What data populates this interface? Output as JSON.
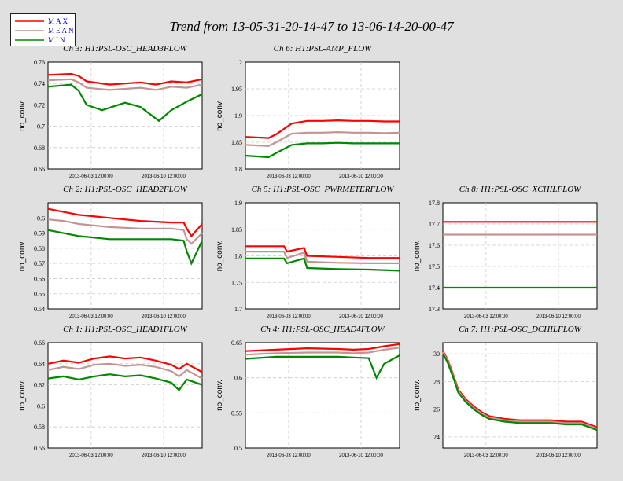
{
  "title": "Trend from 13-05-31-20-14-47 to 13-06-14-20-00-47",
  "legend": [
    {
      "label": "MAX",
      "color": "#ff0000"
    },
    {
      "label": "MEAN",
      "color": "#c49494"
    },
    {
      "label": "MIN",
      "color": "#008800"
    }
  ],
  "chart_data": [
    {
      "type": "line",
      "title": "Ch 3: H1:PSL-OSC_HEAD3FLOW",
      "ylabel": "no_conv.",
      "ylim": [
        0.66,
        0.76
      ],
      "yticks": [
        0.66,
        0.68,
        0.7,
        0.72,
        0.74,
        0.76
      ],
      "xticks": [
        "2013-06-03 12:00:00",
        "2013-06-10 12:00:00"
      ],
      "series": [
        {
          "name": "MAX",
          "x": [
            0,
            0.15,
            0.2,
            0.25,
            0.4,
            0.5,
            0.6,
            0.7,
            0.8,
            0.9,
            1
          ],
          "values": [
            0.748,
            0.749,
            0.747,
            0.742,
            0.739,
            0.74,
            0.741,
            0.739,
            0.742,
            0.741,
            0.744
          ]
        },
        {
          "name": "MEAN",
          "x": [
            0,
            0.15,
            0.2,
            0.25,
            0.4,
            0.5,
            0.6,
            0.7,
            0.8,
            0.9,
            1
          ],
          "values": [
            0.743,
            0.744,
            0.741,
            0.736,
            0.734,
            0.735,
            0.736,
            0.734,
            0.737,
            0.736,
            0.739
          ]
        },
        {
          "name": "MIN",
          "x": [
            0,
            0.15,
            0.2,
            0.25,
            0.35,
            0.5,
            0.6,
            0.72,
            0.8,
            0.9,
            1
          ],
          "values": [
            0.737,
            0.739,
            0.733,
            0.72,
            0.715,
            0.722,
            0.718,
            0.705,
            0.715,
            0.723,
            0.73
          ]
        }
      ]
    },
    {
      "type": "line",
      "title": "Ch 6: H1:PSL-AMP_FLOW",
      "ylabel": "no_conv.",
      "ylim": [
        1.8,
        2.0
      ],
      "yticks": [
        1.8,
        1.85,
        1.9,
        1.95,
        2
      ],
      "xticks": [
        "2013-06-03 12:00:00",
        "2013-06-10 12:00:00"
      ],
      "series": [
        {
          "name": "MAX",
          "x": [
            0,
            0.15,
            0.2,
            0.3,
            0.4,
            0.5,
            0.6,
            0.7,
            0.8,
            0.9,
            1
          ],
          "values": [
            1.86,
            1.858,
            1.865,
            1.885,
            1.89,
            1.89,
            1.891,
            1.89,
            1.89,
            1.889,
            1.889
          ]
        },
        {
          "name": "MEAN",
          "x": [
            0,
            0.15,
            0.2,
            0.3,
            0.4,
            0.5,
            0.6,
            0.7,
            0.8,
            0.9,
            1
          ],
          "values": [
            1.845,
            1.843,
            1.85,
            1.866,
            1.868,
            1.868,
            1.869,
            1.868,
            1.868,
            1.867,
            1.868
          ]
        },
        {
          "name": "MIN",
          "x": [
            0,
            0.15,
            0.2,
            0.3,
            0.4,
            0.5,
            0.6,
            0.7,
            0.8,
            0.9,
            1
          ],
          "values": [
            1.825,
            1.822,
            1.83,
            1.845,
            1.848,
            1.848,
            1.849,
            1.848,
            1.848,
            1.848,
            1.848
          ]
        }
      ]
    },
    {
      "type": "line",
      "title": "Ch 2: H1:PSL-OSC_HEAD2FLOW",
      "ylabel": "no_conv.",
      "ylim": [
        0.54,
        0.61
      ],
      "yticks": [
        0.54,
        0.55,
        0.56,
        0.57,
        0.58,
        0.59,
        0.6
      ],
      "xticks": [
        "2013-06-03 12:00:00",
        "2013-06-10 12:00:00"
      ],
      "series": [
        {
          "name": "MAX",
          "x": [
            0,
            0.1,
            0.2,
            0.4,
            0.6,
            0.8,
            0.88,
            0.9,
            0.93,
            1
          ],
          "values": [
            0.606,
            0.604,
            0.602,
            0.6,
            0.598,
            0.597,
            0.597,
            0.593,
            0.588,
            0.596
          ]
        },
        {
          "name": "MEAN",
          "x": [
            0,
            0.1,
            0.2,
            0.4,
            0.6,
            0.8,
            0.88,
            0.9,
            0.93,
            1
          ],
          "values": [
            0.599,
            0.598,
            0.596,
            0.594,
            0.593,
            0.593,
            0.592,
            0.586,
            0.583,
            0.59
          ]
        },
        {
          "name": "MIN",
          "x": [
            0,
            0.1,
            0.2,
            0.4,
            0.6,
            0.8,
            0.88,
            0.9,
            0.93,
            1
          ],
          "values": [
            0.592,
            0.59,
            0.588,
            0.586,
            0.586,
            0.586,
            0.585,
            0.578,
            0.57,
            0.585
          ]
        }
      ]
    },
    {
      "type": "line",
      "title": "Ch 5: H1:PSL-OSC_PWRMETERFLOW",
      "ylabel": "no_conv.",
      "ylim": [
        1.7,
        1.9
      ],
      "yticks": [
        1.7,
        1.75,
        1.8,
        1.85,
        1.9
      ],
      "xticks": [
        "2013-06-03 12:00:00",
        "2013-06-10 12:00:00"
      ],
      "series": [
        {
          "name": "MAX",
          "x": [
            0,
            0.25,
            0.27,
            0.38,
            0.4,
            0.6,
            0.8,
            1
          ],
          "values": [
            1.818,
            1.818,
            1.808,
            1.815,
            1.8,
            1.798,
            1.796,
            1.796
          ]
        },
        {
          "name": "MEAN",
          "x": [
            0,
            0.25,
            0.27,
            0.38,
            0.4,
            0.6,
            0.8,
            1
          ],
          "values": [
            1.808,
            1.808,
            1.796,
            1.806,
            1.789,
            1.787,
            1.786,
            1.786
          ]
        },
        {
          "name": "MIN",
          "x": [
            0,
            0.25,
            0.27,
            0.38,
            0.4,
            0.6,
            0.8,
            1
          ],
          "values": [
            1.795,
            1.795,
            1.786,
            1.795,
            1.777,
            1.775,
            1.774,
            1.772
          ]
        }
      ]
    },
    {
      "type": "line",
      "title": "Ch 8: H1:PSL-OSC_XCHILFLOW",
      "ylabel": "no_conv.",
      "ylim": [
        17.3,
        17.8
      ],
      "yticks": [
        17.3,
        17.4,
        17.5,
        17.6,
        17.7,
        17.8
      ],
      "xticks": [
        "2013-06-03 12:00:00",
        "2013-06-10 12:00:00"
      ],
      "series": [
        {
          "name": "MAX",
          "x": [
            0,
            1
          ],
          "values": [
            17.71,
            17.71
          ]
        },
        {
          "name": "MEAN",
          "x": [
            0,
            1
          ],
          "values": [
            17.65,
            17.65
          ]
        },
        {
          "name": "MIN",
          "x": [
            0,
            1
          ],
          "values": [
            17.4,
            17.4
          ]
        }
      ]
    },
    {
      "type": "line",
      "title": "Ch 1: H1:PSL-OSC_HEAD1FLOW",
      "ylabel": "no_conv.",
      "ylim": [
        0.56,
        0.66
      ],
      "yticks": [
        0.56,
        0.58,
        0.6,
        0.62,
        0.64,
        0.66
      ],
      "xticks": [
        "2013-06-03 12:00:00",
        "2013-06-10 12:00:00"
      ],
      "series": [
        {
          "name": "MAX",
          "x": [
            0,
            0.1,
            0.2,
            0.3,
            0.4,
            0.5,
            0.6,
            0.7,
            0.8,
            0.85,
            0.9,
            1
          ],
          "values": [
            0.64,
            0.643,
            0.641,
            0.645,
            0.647,
            0.645,
            0.646,
            0.643,
            0.639,
            0.635,
            0.64,
            0.632
          ]
        },
        {
          "name": "MEAN",
          "x": [
            0,
            0.1,
            0.2,
            0.3,
            0.4,
            0.5,
            0.6,
            0.7,
            0.8,
            0.85,
            0.9,
            1
          ],
          "values": [
            0.634,
            0.637,
            0.635,
            0.639,
            0.64,
            0.638,
            0.639,
            0.637,
            0.633,
            0.628,
            0.634,
            0.626
          ]
        },
        {
          "name": "MIN",
          "x": [
            0,
            0.1,
            0.2,
            0.3,
            0.4,
            0.5,
            0.6,
            0.7,
            0.8,
            0.85,
            0.9,
            1
          ],
          "values": [
            0.626,
            0.628,
            0.625,
            0.628,
            0.63,
            0.628,
            0.629,
            0.626,
            0.622,
            0.615,
            0.625,
            0.62
          ]
        }
      ]
    },
    {
      "type": "line",
      "title": "Ch 4: H1:PSL-OSC_HEAD4FLOW",
      "ylabel": "no_conv.",
      "ylim": [
        0.5,
        0.65
      ],
      "yticks": [
        0.5,
        0.55,
        0.6,
        0.65
      ],
      "xticks": [
        "2013-06-03 12:00:00",
        "2013-06-10 12:00:00"
      ],
      "series": [
        {
          "name": "MAX",
          "x": [
            0,
            0.2,
            0.4,
            0.6,
            0.7,
            0.8,
            0.9,
            1
          ],
          "values": [
            0.638,
            0.64,
            0.642,
            0.641,
            0.64,
            0.641,
            0.645,
            0.648
          ]
        },
        {
          "name": "MEAN",
          "x": [
            0,
            0.2,
            0.4,
            0.6,
            0.7,
            0.8,
            0.9,
            1
          ],
          "values": [
            0.633,
            0.635,
            0.636,
            0.636,
            0.635,
            0.636,
            0.64,
            0.643
          ]
        },
        {
          "name": "MIN",
          "x": [
            0,
            0.2,
            0.4,
            0.6,
            0.7,
            0.8,
            0.85,
            0.9,
            1
          ],
          "values": [
            0.627,
            0.63,
            0.63,
            0.63,
            0.629,
            0.628,
            0.6,
            0.62,
            0.632
          ]
        }
      ]
    },
    {
      "type": "line",
      "title": "Ch 7: H1:PSL-OSC_DCHILFLOW",
      "ylabel": "no_conv.",
      "ylim": [
        23.2,
        30.8
      ],
      "yticks": [
        24,
        26,
        28,
        30
      ],
      "xticks": [
        "2013-06-03 12:00:00",
        "2013-06-10 12:00:00"
      ],
      "series": [
        {
          "name": "MAX",
          "x": [
            0,
            0.03,
            0.07,
            0.1,
            0.15,
            0.2,
            0.25,
            0.3,
            0.35,
            0.4,
            0.5,
            0.6,
            0.7,
            0.8,
            0.9,
            0.95,
            1
          ],
          "values": [
            30.2,
            29.6,
            28.4,
            27.4,
            26.7,
            26.2,
            25.8,
            25.5,
            25.4,
            25.3,
            25.2,
            25.2,
            25.2,
            25.1,
            25.1,
            24.9,
            24.7
          ]
        },
        {
          "name": "MEAN",
          "x": [
            0,
            0.03,
            0.07,
            0.1,
            0.15,
            0.2,
            0.25,
            0.3,
            0.35,
            0.4,
            0.5,
            0.6,
            0.7,
            0.8,
            0.9,
            0.95,
            1
          ],
          "values": [
            30.1,
            29.5,
            28.3,
            27.3,
            26.6,
            26.1,
            25.7,
            25.4,
            25.3,
            25.2,
            25.1,
            25.1,
            25.1,
            25.0,
            25.0,
            24.8,
            24.6
          ]
        },
        {
          "name": "MIN",
          "x": [
            0,
            0.03,
            0.07,
            0.1,
            0.15,
            0.2,
            0.25,
            0.3,
            0.35,
            0.4,
            0.5,
            0.6,
            0.7,
            0.8,
            0.9,
            0.95,
            1
          ],
          "values": [
            30.0,
            29.4,
            28.2,
            27.2,
            26.5,
            26.0,
            25.6,
            25.3,
            25.2,
            25.1,
            25.0,
            25.0,
            25.0,
            24.9,
            24.9,
            24.7,
            24.5
          ]
        }
      ]
    }
  ]
}
